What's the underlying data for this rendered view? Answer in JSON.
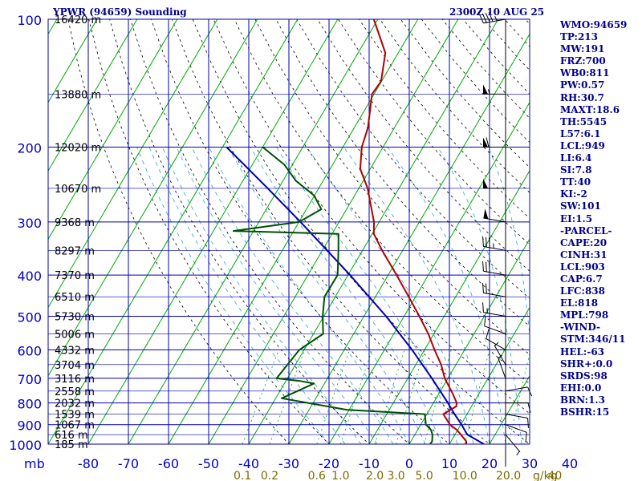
{
  "header": {
    "station_title": "YPWR (94659) Sounding",
    "valid_time": "2300Z 10 AUG 25"
  },
  "colors": {
    "frame": "#0000aa",
    "isotherm": "#00aa00",
    "dry_adiabat": "#000000",
    "moist_adiabat": "#2f9fd9",
    "temperature": "#b00000",
    "dewpoint": "#005000",
    "parcel": "#0000b0",
    "label_text": "#0000cc",
    "mixing_ratio_label": "#7a6a00",
    "wind_barb": "#000000"
  },
  "stats": [
    "WMO:94659",
    "TP:213",
    "MW:191",
    "FRZ:700",
    "WB0:811",
    "PW:0.57",
    "RH:30.7",
    "MAXT:18.6",
    "TH:5545",
    "L57:6.1",
    "LCL:949",
    "LI:6.4",
    "SI:7.8",
    "TT:40",
    "KI:-2",
    "SW:101",
    "EI:1.5",
    "-PARCEL-",
    "CAPE:20",
    "CINH:31",
    "LCL:903",
    "CAP:6.7",
    "LFC:838",
    "EL:818",
    "MPL:798",
    "-WIND-",
    "STM:346/11",
    "HEL:-63",
    "SHR+:0.0",
    "SRDS:98",
    "EHI:0.0",
    "BRN:1.3",
    "BSHR:15"
  ],
  "chart_data": {
    "type": "line",
    "title": "YPWR (94659) Sounding",
    "pressure_axis": {
      "unit": "mb",
      "scale": "log",
      "range": [
        1000,
        100
      ],
      "ticks": [
        100,
        200,
        300,
        400,
        500,
        600,
        700,
        800,
        900,
        1000
      ]
    },
    "temperature_axis": {
      "skewed": true,
      "range": [
        -80,
        40
      ],
      "ticks": [
        -80,
        -70,
        -60,
        -50,
        -40,
        -30,
        -20,
        -10,
        0,
        10,
        20,
        30,
        40
      ]
    },
    "height_labels": [
      {
        "p": 100,
        "label": "16420 m"
      },
      {
        "p": 150,
        "label": "13880 m"
      },
      {
        "p": 200,
        "label": "12020 m"
      },
      {
        "p": 250,
        "label": "10670 m"
      },
      {
        "p": 300,
        "label": "9368 m"
      },
      {
        "p": 350,
        "label": "8297 m"
      },
      {
        "p": 400,
        "label": "7370 m"
      },
      {
        "p": 450,
        "label": "6510 m"
      },
      {
        "p": 500,
        "label": "5730 m"
      },
      {
        "p": 550,
        "label": "5006 m"
      },
      {
        "p": 600,
        "label": "4332 m"
      },
      {
        "p": 650,
        "label": "3704 m"
      },
      {
        "p": 700,
        "label": "3116 m"
      },
      {
        "p": 750,
        "label": "2558 m"
      },
      {
        "p": 800,
        "label": "2032 m"
      },
      {
        "p": 850,
        "label": "1539 m"
      },
      {
        "p": 900,
        "label": "1067 m"
      },
      {
        "p": 950,
        "label": "616 m"
      },
      {
        "p": 1000,
        "label": "185 m"
      }
    ],
    "mixing_ratio_labels": [
      {
        "w": 0.1,
        "label": "0.1"
      },
      {
        "w": 0.2,
        "label": "0.2"
      },
      {
        "w": 0.6,
        "label": "0.6"
      },
      {
        "w": 1.0,
        "label": "1.0"
      },
      {
        "w": 2.0,
        "label": "2.0"
      },
      {
        "w": 3.0,
        "label": "3.0"
      },
      {
        "w": 5.0,
        "label": "5.0"
      },
      {
        "w": 10.0,
        "label": "10.0"
      },
      {
        "w": 20.0,
        "label": "20.0"
      },
      {
        "w": 40.0,
        "label": "40"
      }
    ],
    "mixing_ratio_unit": "g/kg",
    "series": [
      {
        "name": "Temperature",
        "points": [
          {
            "p": 1000,
            "t": 14.2
          },
          {
            "p": 985,
            "t": 13.8
          },
          {
            "p": 950,
            "t": 11.5
          },
          {
            "p": 925,
            "t": 9.7
          },
          {
            "p": 900,
            "t": 7.3
          },
          {
            "p": 850,
            "t": 4.1
          },
          {
            "p": 815,
            "t": 6.2
          },
          {
            "p": 800,
            "t": 5.8
          },
          {
            "p": 760,
            "t": 3.4
          },
          {
            "p": 700,
            "t": -0.8
          },
          {
            "p": 650,
            "t": -3.7
          },
          {
            "p": 600,
            "t": -7.5
          },
          {
            "p": 550,
            "t": -11.4
          },
          {
            "p": 500,
            "t": -16.2
          },
          {
            "p": 450,
            "t": -21.7
          },
          {
            "p": 400,
            "t": -27.9
          },
          {
            "p": 350,
            "t": -35.1
          },
          {
            "p": 320,
            "t": -39.6
          },
          {
            "p": 300,
            "t": -41.3
          },
          {
            "p": 250,
            "t": -47.8
          },
          {
            "p": 225,
            "t": -52.5
          },
          {
            "p": 200,
            "t": -55.3
          },
          {
            "p": 180,
            "t": -56.6
          },
          {
            "p": 150,
            "t": -60.5
          },
          {
            "p": 140,
            "t": -60.1
          },
          {
            "p": 120,
            "t": -63.2
          },
          {
            "p": 100,
            "t": -71.0
          }
        ]
      },
      {
        "name": "Dewpoint",
        "points": [
          {
            "p": 1000,
            "t": 5.2
          },
          {
            "p": 985,
            "t": 5.3
          },
          {
            "p": 950,
            "t": 4.4
          },
          {
            "p": 925,
            "t": 3.3
          },
          {
            "p": 900,
            "t": 1.3
          },
          {
            "p": 850,
            "t": -0.5
          },
          {
            "p": 830,
            "t": -20.7
          },
          {
            "p": 780,
            "t": -38.5
          },
          {
            "p": 720,
            "t": -32.6
          },
          {
            "p": 710,
            "t": -36.5
          },
          {
            "p": 700,
            "t": -42.7
          },
          {
            "p": 600,
            "t": -41.2
          },
          {
            "p": 550,
            "t": -37.6
          },
          {
            "p": 500,
            "t": -40.3
          },
          {
            "p": 450,
            "t": -42.7
          },
          {
            "p": 400,
            "t": -42.6
          },
          {
            "p": 350,
            "t": -46.0
          },
          {
            "p": 320,
            "t": -48.4
          },
          {
            "p": 315,
            "t": -75.0
          },
          {
            "p": 300,
            "t": -60.0
          },
          {
            "p": 280,
            "t": -56.3
          },
          {
            "p": 260,
            "t": -60.1
          },
          {
            "p": 240,
            "t": -66.8
          },
          {
            "p": 220,
            "t": -72.0
          },
          {
            "p": 200,
            "t": -80.0
          }
        ]
      },
      {
        "name": "Parcel",
        "points": [
          {
            "p": 1000,
            "t": 18.6
          },
          {
            "p": 949,
            "t": 13.0
          },
          {
            "p": 900,
            "t": 10.2
          },
          {
            "p": 850,
            "t": 6.9
          },
          {
            "p": 800,
            "t": 3.6
          },
          {
            "p": 700,
            "t": -4.0
          },
          {
            "p": 600,
            "t": -13.1
          },
          {
            "p": 500,
            "t": -24.5
          },
          {
            "p": 400,
            "t": -39.5
          },
          {
            "p": 300,
            "t": -59.6
          },
          {
            "p": 250,
            "t": -72.7
          },
          {
            "p": 200,
            "t": -89.0
          }
        ]
      }
    ],
    "wind_profile": [
      {
        "p": 1000,
        "dir": 180,
        "spd": 0
      },
      {
        "p": 950,
        "dir": 140,
        "spd": 5
      },
      {
        "p": 900,
        "dir": 110,
        "spd": 10
      },
      {
        "p": 850,
        "dir": 100,
        "spd": 10
      },
      {
        "p": 800,
        "dir": 90,
        "spd": 10
      },
      {
        "p": 750,
        "dir": 80,
        "spd": 10
      },
      {
        "p": 700,
        "dir": 340,
        "spd": 5
      },
      {
        "p": 650,
        "dir": 330,
        "spd": 5
      },
      {
        "p": 600,
        "dir": 300,
        "spd": 10
      },
      {
        "p": 550,
        "dir": 290,
        "spd": 10
      },
      {
        "p": 500,
        "dir": 280,
        "spd": 15
      },
      {
        "p": 450,
        "dir": 280,
        "spd": 20
      },
      {
        "p": 400,
        "dir": 280,
        "spd": 30
      },
      {
        "p": 350,
        "dir": 280,
        "spd": 35
      },
      {
        "p": 300,
        "dir": 280,
        "spd": 50
      },
      {
        "p": 250,
        "dir": 270,
        "spd": 50
      },
      {
        "p": 200,
        "dir": 270,
        "spd": 60
      },
      {
        "p": 150,
        "dir": 270,
        "spd": 55
      },
      {
        "p": 100,
        "dir": 260,
        "spd": 45
      }
    ]
  }
}
